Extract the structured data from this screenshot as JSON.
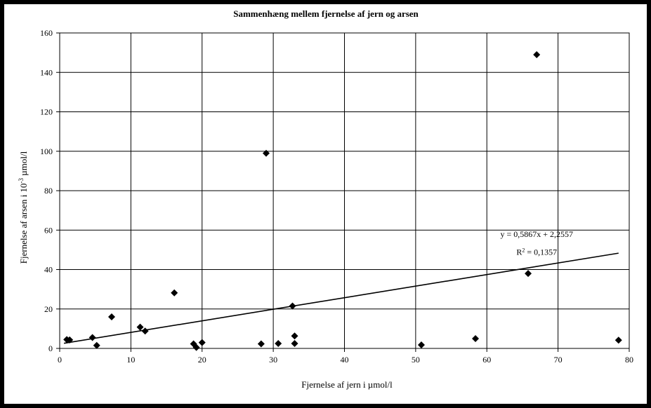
{
  "chart_data": {
    "type": "scatter",
    "title": "Sammenhæng mellem fjernelse af jern og arsen",
    "xlabel": "Fjernelse af jern i µmol/l",
    "ylabel_main": "Fjernelse af arsen i 10",
    "ylabel_sup": "-3",
    "ylabel_tail": " µmol/l",
    "xlim": [
      0,
      80
    ],
    "ylim": [
      0,
      160
    ],
    "x_ticks": [
      0,
      10,
      20,
      30,
      40,
      50,
      60,
      70,
      80
    ],
    "y_ticks": [
      0,
      20,
      40,
      60,
      80,
      100,
      120,
      140,
      160
    ],
    "grid": true,
    "marker": "diamond",
    "marker_color": "#000000",
    "points": [
      {
        "x": 1.0,
        "y": 4.5
      },
      {
        "x": 1.4,
        "y": 4.3
      },
      {
        "x": 4.6,
        "y": 5.5
      },
      {
        "x": 5.2,
        "y": 1.5
      },
      {
        "x": 7.3,
        "y": 16.0
      },
      {
        "x": 11.3,
        "y": 10.8
      },
      {
        "x": 12.0,
        "y": 8.8
      },
      {
        "x": 16.1,
        "y": 28.2
      },
      {
        "x": 18.8,
        "y": 2.3
      },
      {
        "x": 19.2,
        "y": 0.5
      },
      {
        "x": 20.0,
        "y": 3.0
      },
      {
        "x": 28.3,
        "y": 2.3
      },
      {
        "x": 29.0,
        "y": 99.0
      },
      {
        "x": 30.7,
        "y": 2.5
      },
      {
        "x": 32.7,
        "y": 21.5
      },
      {
        "x": 33.0,
        "y": 6.3
      },
      {
        "x": 33.0,
        "y": 2.5
      },
      {
        "x": 50.8,
        "y": 1.8
      },
      {
        "x": 58.4,
        "y": 5.0
      },
      {
        "x": 65.8,
        "y": 38.0
      },
      {
        "x": 67.0,
        "y": 149.0
      },
      {
        "x": 78.5,
        "y": 4.2
      }
    ],
    "trendline": {
      "slope": 0.5867,
      "intercept": 2.2557,
      "x_start": 0.6,
      "x_end": 78.5
    },
    "equation_label": "y = 0,5867x + 2,2557",
    "r2_label_prefix": "R",
    "r2_label_sup": "2",
    "r2_label_suffix": " = 0,1357"
  }
}
